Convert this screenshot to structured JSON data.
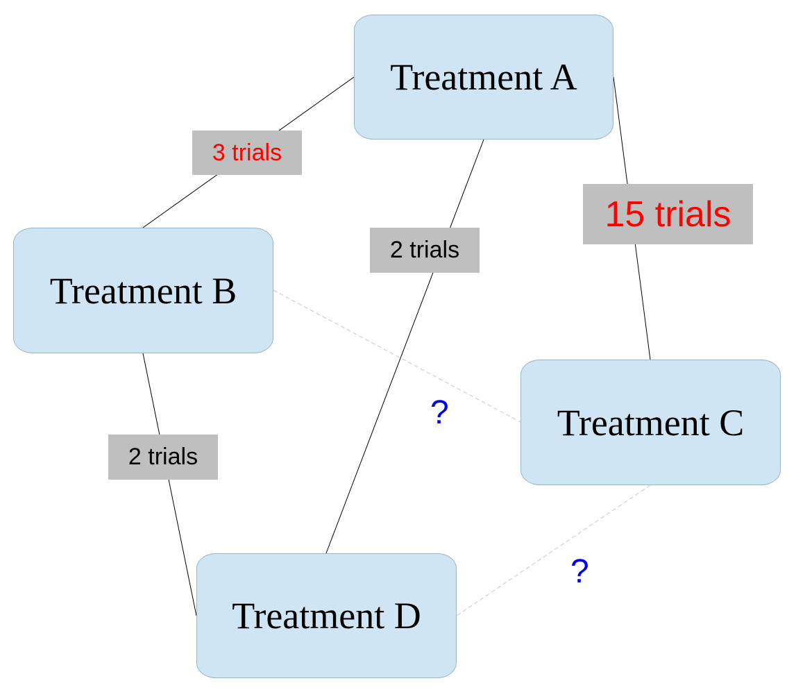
{
  "nodes": {
    "a": {
      "label": "Treatment A"
    },
    "b": {
      "label": "Treatment B"
    },
    "c": {
      "label": "Treatment C"
    },
    "d": {
      "label": "Treatment D"
    }
  },
  "edges": {
    "ab": {
      "label": "3 trials",
      "text_color": "#ff0000",
      "style": "solid"
    },
    "ad": {
      "label": "2 trials",
      "text_color": "#000000",
      "style": "solid"
    },
    "ac": {
      "label": "15 trials",
      "text_color": "#ff0000",
      "style": "solid"
    },
    "bd": {
      "label": "2 trials",
      "text_color": "#000000",
      "style": "solid"
    },
    "bc": {
      "label": "?",
      "text_color": "#0000ee",
      "style": "dashed"
    },
    "cd": {
      "label": "?",
      "text_color": "#0000ee",
      "style": "dashed"
    }
  },
  "colors": {
    "node_fill": "#cfe5f3",
    "label_fill": "#bfbfbf",
    "solid_line": "#000000",
    "dashed_line": "#c8c8c8"
  }
}
